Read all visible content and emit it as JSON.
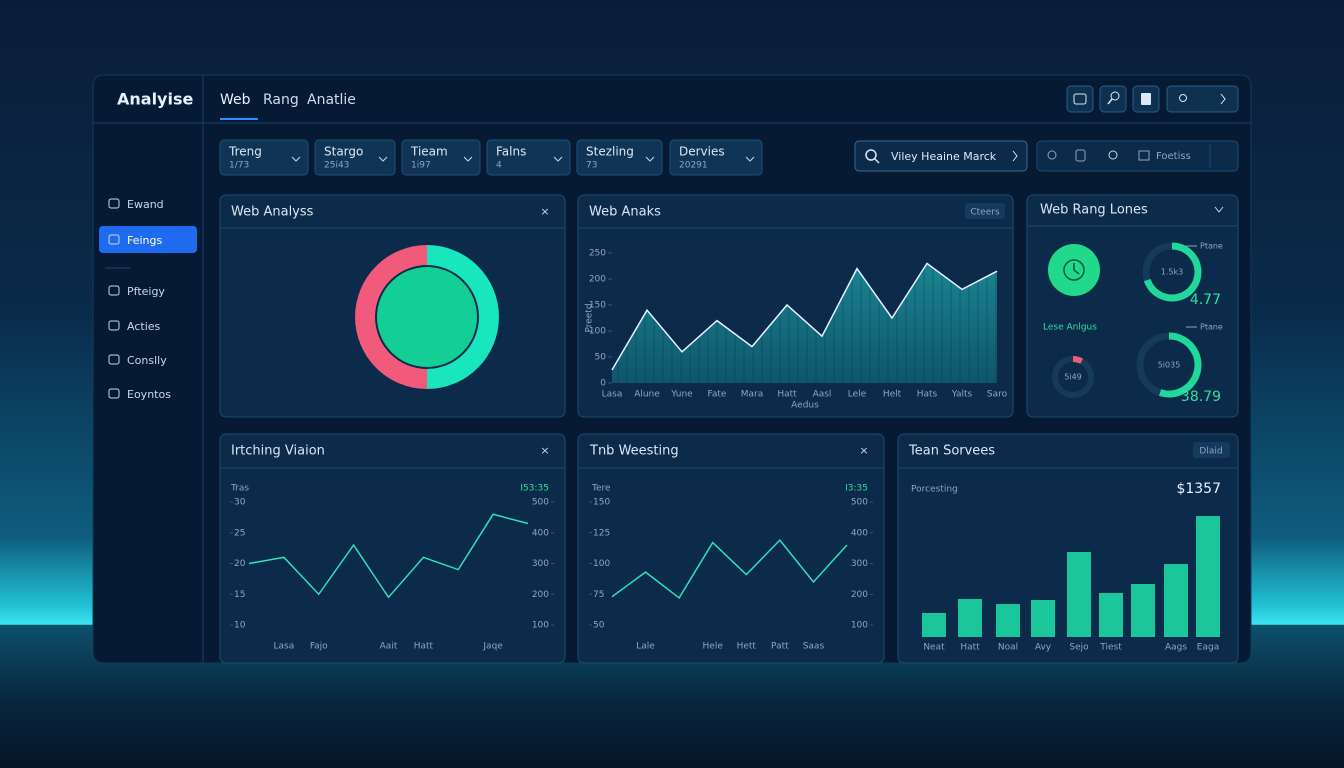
{
  "header": {
    "logo": "Analyise",
    "tabs": [
      "Web",
      "Rang",
      "Anatlie"
    ]
  },
  "filters": [
    {
      "label": "Treng",
      "value": "1/73"
    },
    {
      "label": "Stargo",
      "value": "25i43"
    },
    {
      "label": "Tieam",
      "value": "1i97"
    },
    {
      "label": "Falns",
      "value": "4"
    },
    {
      "label": "Stezling",
      "value": "73"
    },
    {
      "label": "Dervies",
      "value": "20291"
    }
  ],
  "search": "Viley Heaine Marck",
  "toolbar": "Foetiss",
  "sidebar": [
    "Ewand",
    "Feings",
    "Pfteigy",
    "Acties",
    "Conslly",
    "Eoyntos"
  ],
  "chart_data": [
    {
      "type": "pie",
      "title": "Web Analyss",
      "values": [
        50,
        50
      ],
      "colors": [
        "#19e6bd",
        "#f25a7c"
      ]
    },
    {
      "type": "area",
      "title": "Web Anaks",
      "badge": "Cteers",
      "ylabel": "Preetd",
      "xlabel": "Aedus",
      "categories": [
        "Lasa",
        "Alune",
        "Yune",
        "Fate",
        "Mara",
        "Hatt",
        "Aasl",
        "Lele",
        "Helt",
        "Hats",
        "Yalts",
        "Saro"
      ],
      "values": [
        25,
        140,
        60,
        120,
        70,
        150,
        90,
        220,
        125,
        230,
        180,
        215
      ],
      "ylim": [
        0,
        250
      ],
      "yticks": [
        0,
        50,
        100,
        150,
        200,
        250
      ],
      "color": "#1b8f9a"
    },
    {
      "type": "gauge",
      "title": "Web Rang Lones",
      "subtitle": "Lese Anlgus",
      "gauges": [
        {
          "center": "1.5k3",
          "value": 70,
          "note": "Ptane",
          "reading": "4.77"
        },
        {
          "center": "5i49",
          "value": 8
        },
        {
          "center": "5i035",
          "value": 55,
          "note": "Ptane",
          "reading": "38.79"
        }
      ],
      "color": "#1fd89a"
    },
    {
      "type": "line",
      "title": "Irtching Viaion",
      "ylabel": "Tras",
      "annotation": "I53:35",
      "categories": [
        null,
        "Lasa",
        "Fajo",
        null,
        "Aait",
        "Hatt",
        null,
        "Jaqe",
        null
      ],
      "values": [
        20,
        21,
        15,
        23,
        14.5,
        21,
        19,
        28,
        26.5
      ],
      "ylim": [
        10,
        30
      ],
      "yticks": [
        10,
        15,
        20,
        25,
        30
      ],
      "y2lim": [
        100,
        500
      ],
      "y2ticks": [
        100,
        200,
        300,
        400,
        500
      ],
      "color": "#2fe0b8"
    },
    {
      "type": "line",
      "title": "Tnb Weesting",
      "ylabel": "Tere",
      "annotation": "I3:35",
      "categories": [
        null,
        "Lale",
        null,
        "Hele",
        "Hett",
        "Patt",
        "Saas",
        null
      ],
      "values": [
        73,
        93,
        72,
        117,
        91,
        119,
        85,
        115
      ],
      "ylim": [
        50,
        150
      ],
      "yticks": [
        50,
        75,
        100,
        125,
        150
      ],
      "y2lim": [
        100,
        500
      ],
      "y2ticks": [
        100,
        200,
        300,
        400,
        500
      ],
      "color": "#2fe0b8"
    },
    {
      "type": "bar",
      "title": "Tean Sorvees",
      "badge": "Dlaid",
      "subtitle": "Porcesting",
      "annotation": "$1357",
      "categories": [
        "Neat",
        "Hatt",
        "Noal",
        "Avy",
        "Sejo",
        "Tiest",
        null,
        "Aags",
        "Eaga"
      ],
      "values": [
        24,
        38,
        33,
        37,
        85,
        44,
        53,
        73,
        121
      ],
      "ylim": [
        0,
        125
      ],
      "color": "#1bc79a"
    }
  ]
}
